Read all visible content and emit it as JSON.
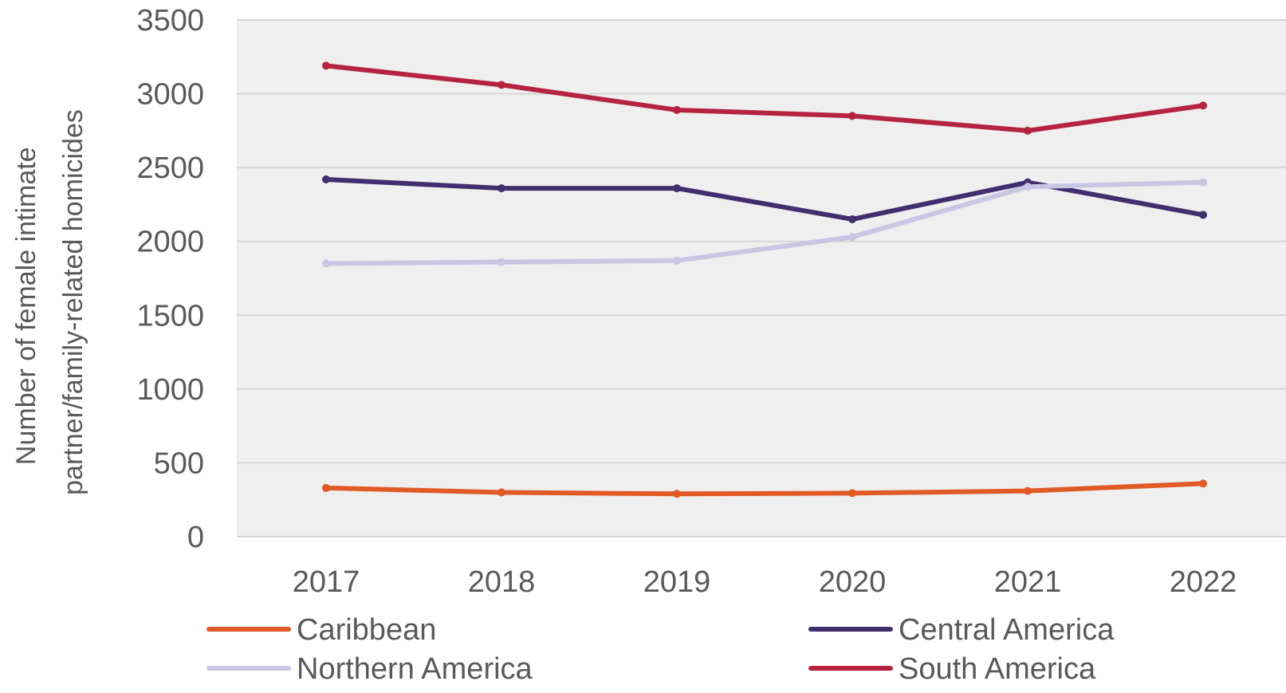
{
  "chart_data": {
    "type": "line",
    "title": "",
    "ylabel": "Number of female intimate partner/family-related homicides",
    "ylabel_lines": [
      "Number of female intimate",
      "partner/family-related homicides"
    ],
    "xlabel": "",
    "x": [
      "2017",
      "2018",
      "2019",
      "2020",
      "2021",
      "2022"
    ],
    "ylim": [
      0,
      3500
    ],
    "yticks": [
      0,
      500,
      1000,
      1500,
      2000,
      2500,
      3000,
      3500
    ],
    "grid": true,
    "legend_position": "bottom",
    "series": [
      {
        "name": "Caribbean",
        "color": "#E15A26",
        "values": [
          330,
          300,
          290,
          295,
          310,
          360
        ]
      },
      {
        "name": "Central America",
        "color": "#3F2F6E",
        "values": [
          2420,
          2360,
          2360,
          2150,
          2400,
          2180
        ]
      },
      {
        "name": "Northern America",
        "color": "#C9C6E3",
        "values": [
          1850,
          1860,
          1870,
          2030,
          2370,
          2400
        ]
      },
      {
        "name": "South America",
        "color": "#B5233F",
        "values": [
          3190,
          3060,
          2890,
          2850,
          2750,
          2920
        ]
      }
    ]
  }
}
